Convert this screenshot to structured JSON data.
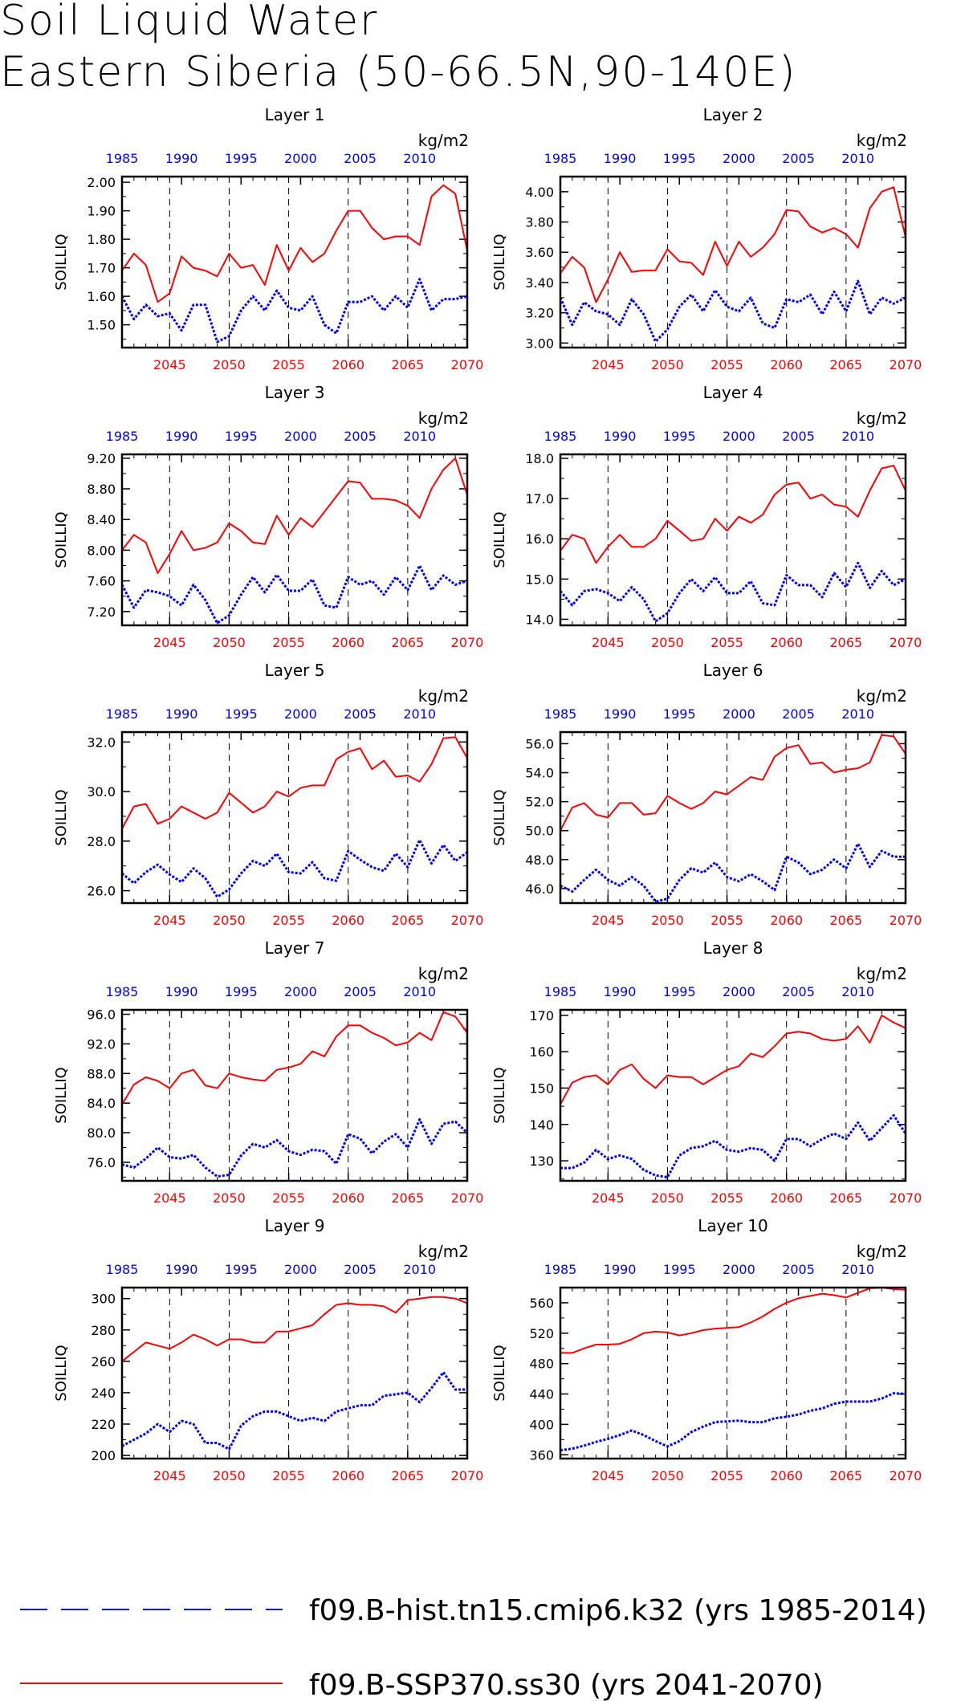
{
  "title": {
    "line1": "Soil Liquid Water",
    "line2": "Eastern Siberia (50-66.5N,90-140E)"
  },
  "colors": {
    "hist": "#0000ff",
    "ssp": "#ff0000",
    "axis": "#000000"
  },
  "common": {
    "ylabel": "SOILLIQ",
    "units": "kg/m2",
    "bottom_ticks": [
      "2045",
      "2050",
      "2055",
      "2060",
      "2065",
      "2070"
    ],
    "top_ticks": [
      "1985",
      "1990",
      "1995",
      "2000",
      "2005",
      "2010"
    ]
  },
  "legend": {
    "hist_label": "f09.B-hist.tn15.cmip6.k32 (yrs 1985-2014)",
    "ssp_label": "f09.B-SSP370.ss30 (yrs 2041-2070)"
  },
  "chart_data": [
    {
      "type": "line",
      "title": "Layer 1",
      "ylabel": "SOILLIQ",
      "units": "kg/m2",
      "ylim": [
        1.42,
        2.02
      ],
      "yticks": [
        1.5,
        1.6,
        1.7,
        1.8,
        1.9,
        2.0
      ],
      "ytick_labels": [
        "1.50",
        "1.60",
        "1.70",
        "1.80",
        "1.90",
        "2.00"
      ],
      "x_bottom": [
        2041,
        2070
      ],
      "x_top": [
        1985,
        2014
      ],
      "series": [
        {
          "name": "f09.B-SSP370.ss30 (yrs 2041-2070)",
          "color": "#ff0000",
          "values": [
            1.69,
            1.75,
            1.71,
            1.58,
            1.61,
            1.74,
            1.7,
            1.69,
            1.67,
            1.75,
            1.7,
            1.71,
            1.64,
            1.78,
            1.69,
            1.77,
            1.72,
            1.75,
            1.83,
            1.9,
            1.9,
            1.84,
            1.8,
            1.81,
            1.81,
            1.78,
            1.95,
            1.99,
            1.96,
            1.76
          ]
        },
        {
          "name": "f09.B-hist.tn15.cmip6.k32 (yrs 1985-2014)",
          "color": "#0000ff",
          "values": [
            1.6,
            1.52,
            1.57,
            1.53,
            1.54,
            1.48,
            1.57,
            1.57,
            1.44,
            1.46,
            1.55,
            1.6,
            1.55,
            1.62,
            1.56,
            1.55,
            1.6,
            1.5,
            1.47,
            1.58,
            1.58,
            1.6,
            1.55,
            1.6,
            1.56,
            1.66,
            1.55,
            1.59,
            1.59,
            1.6
          ]
        }
      ]
    },
    {
      "type": "line",
      "title": "Layer 2",
      "ylabel": "SOILLIQ",
      "units": "kg/m2",
      "ylim": [
        2.97,
        4.1
      ],
      "yticks": [
        3.0,
        3.2,
        3.4,
        3.6,
        3.8,
        4.0
      ],
      "ytick_labels": [
        "3.00",
        "3.20",
        "3.40",
        "3.60",
        "3.80",
        "4.00"
      ],
      "x_bottom": [
        2041,
        2070
      ],
      "x_top": [
        1985,
        2014
      ],
      "series": [
        {
          "name": "f09.B-SSP370.ss30 (yrs 2041-2070)",
          "color": "#ff0000",
          "values": [
            3.46,
            3.57,
            3.5,
            3.27,
            3.42,
            3.6,
            3.47,
            3.48,
            3.48,
            3.62,
            3.54,
            3.53,
            3.45,
            3.67,
            3.51,
            3.67,
            3.57,
            3.63,
            3.72,
            3.88,
            3.87,
            3.77,
            3.73,
            3.76,
            3.72,
            3.63,
            3.89,
            4.0,
            4.03,
            3.7
          ]
        },
        {
          "name": "f09.B-hist.tn15.cmip6.k32 (yrs 1985-2014)",
          "color": "#0000ff",
          "values": [
            3.3,
            3.12,
            3.27,
            3.21,
            3.19,
            3.12,
            3.29,
            3.19,
            3.01,
            3.09,
            3.24,
            3.32,
            3.21,
            3.35,
            3.24,
            3.21,
            3.3,
            3.13,
            3.1,
            3.29,
            3.27,
            3.32,
            3.19,
            3.34,
            3.21,
            3.41,
            3.19,
            3.3,
            3.26,
            3.3
          ]
        }
      ]
    },
    {
      "type": "line",
      "title": "Layer 3",
      "ylabel": "SOILLIQ",
      "units": "kg/m2",
      "ylim": [
        7.02,
        9.25
      ],
      "yticks": [
        7.2,
        7.6,
        8.0,
        8.4,
        8.8,
        9.2
      ],
      "ytick_labels": [
        "7.20",
        "7.60",
        "8.00",
        "8.40",
        "8.80",
        "9.20"
      ],
      "x_bottom": [
        2041,
        2070
      ],
      "x_top": [
        1985,
        2014
      ],
      "series": [
        {
          "name": "f09.B-SSP370.ss30 (yrs 2041-2070)",
          "color": "#ff0000",
          "values": [
            8.0,
            8.2,
            8.1,
            7.7,
            7.95,
            8.25,
            8.0,
            8.03,
            8.1,
            8.35,
            8.25,
            8.1,
            8.08,
            8.45,
            8.2,
            8.42,
            8.3,
            8.5,
            8.7,
            8.9,
            8.88,
            8.67,
            8.67,
            8.65,
            8.58,
            8.42,
            8.8,
            9.05,
            9.2,
            8.72
          ]
        },
        {
          "name": "f09.B-hist.tn15.cmip6.k32 (yrs 1985-2014)",
          "color": "#0000ff",
          "values": [
            7.55,
            7.25,
            7.48,
            7.45,
            7.4,
            7.28,
            7.55,
            7.35,
            7.05,
            7.15,
            7.42,
            7.65,
            7.45,
            7.68,
            7.47,
            7.47,
            7.62,
            7.28,
            7.25,
            7.65,
            7.55,
            7.6,
            7.42,
            7.65,
            7.48,
            7.8,
            7.48,
            7.67,
            7.55,
            7.6
          ]
        }
      ]
    },
    {
      "type": "line",
      "title": "Layer 4",
      "ylabel": "SOILLIQ",
      "units": "kg/m2",
      "ylim": [
        13.85,
        18.1
      ],
      "yticks": [
        14,
        15,
        16,
        17,
        18
      ],
      "ytick_labels": [
        "14.0",
        "15.0",
        "16.0",
        "17.0",
        "18.0"
      ],
      "x_bottom": [
        2041,
        2070
      ],
      "x_top": [
        1985,
        2014
      ],
      "series": [
        {
          "name": "f09.B-SSP370.ss30 (yrs 2041-2070)",
          "color": "#ff0000",
          "values": [
            15.7,
            16.1,
            16.0,
            15.4,
            15.8,
            16.1,
            15.8,
            15.8,
            16.0,
            16.45,
            16.2,
            15.95,
            16.0,
            16.5,
            16.2,
            16.55,
            16.4,
            16.6,
            17.1,
            17.35,
            17.4,
            17.0,
            17.1,
            16.85,
            16.8,
            16.55,
            17.2,
            17.75,
            17.82,
            17.2
          ]
        },
        {
          "name": "f09.B-hist.tn15.cmip6.k32 (yrs 1985-2014)",
          "color": "#0000ff",
          "values": [
            14.7,
            14.35,
            14.7,
            14.75,
            14.65,
            14.45,
            14.8,
            14.5,
            13.95,
            14.15,
            14.65,
            15.0,
            14.7,
            15.05,
            14.65,
            14.65,
            14.95,
            14.4,
            14.35,
            15.1,
            14.85,
            14.85,
            14.55,
            15.15,
            14.8,
            15.4,
            14.78,
            15.2,
            14.85,
            15.0
          ]
        }
      ]
    },
    {
      "type": "line",
      "title": "Layer 5",
      "ylabel": "SOILLIQ",
      "units": "kg/m2",
      "ylim": [
        25.5,
        32.4
      ],
      "yticks": [
        26,
        28,
        30,
        32
      ],
      "ytick_labels": [
        "26.0",
        "28.0",
        "30.0",
        "32.0"
      ],
      "x_bottom": [
        2041,
        2070
      ],
      "x_top": [
        1985,
        2014
      ],
      "series": [
        {
          "name": "f09.B-SSP370.ss30 (yrs 2041-2070)",
          "color": "#ff0000",
          "values": [
            28.5,
            29.4,
            29.5,
            28.7,
            28.9,
            29.4,
            29.15,
            28.9,
            29.15,
            29.95,
            29.55,
            29.15,
            29.4,
            30.0,
            29.8,
            30.15,
            30.25,
            30.25,
            31.3,
            31.6,
            31.75,
            30.9,
            31.25,
            30.6,
            30.65,
            30.4,
            31.1,
            32.15,
            32.2,
            31.35
          ]
        },
        {
          "name": "f09.B-hist.tn15.cmip6.k32 (yrs 1985-2014)",
          "color": "#0000ff",
          "values": [
            26.7,
            26.3,
            26.75,
            27.05,
            26.65,
            26.35,
            26.9,
            26.5,
            25.75,
            26.05,
            26.7,
            27.2,
            27.0,
            27.5,
            26.75,
            26.7,
            27.15,
            26.5,
            26.4,
            27.6,
            27.25,
            26.95,
            26.8,
            27.5,
            26.95,
            28.05,
            27.1,
            27.85,
            27.2,
            27.55
          ]
        }
      ]
    },
    {
      "type": "line",
      "title": "Layer 6",
      "ylabel": "SOILLIQ",
      "units": "kg/m2",
      "ylim": [
        45.0,
        56.8
      ],
      "yticks": [
        46,
        48,
        50,
        52,
        54,
        56
      ],
      "ytick_labels": [
        "46.0",
        "48.0",
        "50.0",
        "52.0",
        "54.0",
        "56.0"
      ],
      "x_bottom": [
        2041,
        2070
      ],
      "x_top": [
        1985,
        2014
      ],
      "series": [
        {
          "name": "f09.B-SSP370.ss30 (yrs 2041-2070)",
          "color": "#ff0000",
          "values": [
            50.0,
            51.6,
            51.9,
            51.1,
            50.9,
            51.9,
            51.9,
            51.1,
            51.2,
            52.4,
            51.9,
            51.5,
            51.9,
            52.7,
            52.5,
            53.1,
            53.7,
            53.5,
            55.1,
            55.7,
            55.9,
            54.6,
            54.7,
            54.0,
            54.2,
            54.3,
            54.7,
            56.6,
            56.5,
            55.3
          ]
        },
        {
          "name": "f09.B-hist.tn15.cmip6.k32 (yrs 1985-2014)",
          "color": "#0000ff",
          "values": [
            46.2,
            45.8,
            46.6,
            47.3,
            46.6,
            46.2,
            46.8,
            46.2,
            45.1,
            45.3,
            46.6,
            47.4,
            47.1,
            47.8,
            46.8,
            46.5,
            47.0,
            46.5,
            45.9,
            48.2,
            47.8,
            47.0,
            47.3,
            48.0,
            47.4,
            49.1,
            47.5,
            48.6,
            48.2,
            48.2
          ]
        }
      ]
    },
    {
      "type": "line",
      "title": "Layer 7",
      "ylabel": "SOILLIQ",
      "units": "kg/m2",
      "ylim": [
        73.5,
        96.6
      ],
      "yticks": [
        76,
        80,
        84,
        88,
        92,
        96
      ],
      "ytick_labels": [
        "76.0",
        "80.0",
        "84.0",
        "88.0",
        "92.0",
        "96.0"
      ],
      "x_bottom": [
        2041,
        2070
      ],
      "x_top": [
        1985,
        2014
      ],
      "series": [
        {
          "name": "f09.B-SSP370.ss30 (yrs 2041-2070)",
          "color": "#ff0000",
          "values": [
            83.8,
            86.5,
            87.5,
            87.0,
            86.0,
            88.0,
            88.5,
            86.4,
            86.0,
            88.0,
            87.5,
            87.2,
            87.0,
            88.5,
            88.8,
            89.3,
            91.0,
            90.3,
            93.0,
            94.5,
            94.5,
            93.5,
            92.8,
            91.8,
            92.2,
            93.5,
            92.5,
            96.3,
            95.7,
            93.5
          ]
        },
        {
          "name": "f09.B-hist.tn15.cmip6.k32 (yrs 1985-2014)",
          "color": "#0000ff",
          "values": [
            75.7,
            75.3,
            76.5,
            78.0,
            76.7,
            76.5,
            77.0,
            75.3,
            74.1,
            74.3,
            76.9,
            78.5,
            78.0,
            79.0,
            77.5,
            77.0,
            77.7,
            77.5,
            75.8,
            79.8,
            79.2,
            77.2,
            78.8,
            79.8,
            78.0,
            81.8,
            78.5,
            81.2,
            81.5,
            80.0
          ]
        }
      ]
    },
    {
      "type": "line",
      "title": "Layer 8",
      "ylabel": "SOILLIQ",
      "units": "kg/m2",
      "ylim": [
        124.5,
        171.5
      ],
      "yticks": [
        130,
        140,
        150,
        160,
        170
      ],
      "ytick_labels": [
        "130",
        "140",
        "150",
        "160",
        "170"
      ],
      "x_bottom": [
        2041,
        2070
      ],
      "x_top": [
        1985,
        2014
      ],
      "series": [
        {
          "name": "f09.B-SSP370.ss30 (yrs 2041-2070)",
          "color": "#ff0000",
          "values": [
            145.5,
            151.5,
            153.0,
            153.5,
            151.0,
            155.0,
            156.5,
            152.5,
            150.0,
            153.5,
            153.0,
            153.0,
            151.0,
            153.0,
            155.0,
            156.0,
            159.5,
            158.5,
            161.5,
            165.0,
            165.5,
            165.0,
            163.5,
            163.0,
            163.5,
            167.0,
            162.5,
            170.0,
            168.0,
            166.5
          ]
        },
        {
          "name": "f09.B-hist.tn15.cmip6.k32 (yrs 1985-2014)",
          "color": "#0000ff",
          "values": [
            128.0,
            128.0,
            129.5,
            133.0,
            130.5,
            131.5,
            130.5,
            127.5,
            126.0,
            125.5,
            131.5,
            133.5,
            134.0,
            135.5,
            133.0,
            132.5,
            133.5,
            133.0,
            130.0,
            136.0,
            136.0,
            134.0,
            136.0,
            137.5,
            136.0,
            140.5,
            135.5,
            139.0,
            142.5,
            137.5
          ]
        }
      ]
    },
    {
      "type": "line",
      "title": "Layer 9",
      "ylabel": "SOILLIQ",
      "units": "kg/m2",
      "ylim": [
        198,
        307
      ],
      "yticks": [
        200,
        220,
        240,
        260,
        280,
        300
      ],
      "ytick_labels": [
        "200",
        "220",
        "240",
        "260",
        "280",
        "300"
      ],
      "x_bottom": [
        2041,
        2070
      ],
      "x_top": [
        1985,
        2014
      ],
      "series": [
        {
          "name": "f09.B-SSP370.ss30 (yrs 2041-2070)",
          "color": "#ff0000",
          "values": [
            260,
            266,
            272,
            270,
            268,
            272,
            277,
            274,
            270,
            274,
            274,
            272,
            272,
            279,
            279,
            281,
            283,
            290,
            296,
            297,
            296,
            296,
            295,
            291,
            299,
            300,
            301,
            301,
            300,
            297
          ]
        },
        {
          "name": "f09.B-hist.tn15.cmip6.k32 (yrs 1985-2014)",
          "color": "#0000ff",
          "values": [
            206,
            210,
            214,
            220,
            215,
            222,
            220,
            208,
            208,
            204,
            219,
            225,
            228,
            228,
            225,
            222,
            224,
            222,
            228,
            230,
            232,
            232,
            238,
            239,
            240,
            234,
            243,
            253,
            242,
            242
          ]
        }
      ]
    },
    {
      "type": "line",
      "title": "Layer 10",
      "ylabel": "SOILLIQ",
      "units": "kg/m2",
      "ylim": [
        355,
        580
      ],
      "yticks": [
        360,
        400,
        440,
        480,
        520,
        560
      ],
      "ytick_labels": [
        "360",
        "400",
        "440",
        "480",
        "520",
        "560"
      ],
      "x_bottom": [
        2041,
        2070
      ],
      "x_top": [
        1985,
        2014
      ],
      "series": [
        {
          "name": "f09.B-SSP370.ss30 (yrs 2041-2070)",
          "color": "#ff0000",
          "values": [
            494,
            494,
            500,
            505,
            505,
            506,
            512,
            520,
            522,
            521,
            517,
            520,
            524,
            526,
            527,
            528,
            534,
            542,
            552,
            560,
            566,
            569,
            572,
            570,
            567,
            573,
            579,
            580,
            578,
            577
          ]
        },
        {
          "name": "f09.B-hist.tn15.cmip6.k32 (yrs 1985-2014)",
          "color": "#0000ff",
          "values": [
            366,
            368,
            372,
            377,
            381,
            386,
            392,
            386,
            378,
            371,
            378,
            390,
            397,
            403,
            404,
            405,
            403,
            403,
            408,
            410,
            413,
            418,
            421,
            427,
            430,
            430,
            430,
            434,
            441,
            440
          ]
        }
      ]
    }
  ]
}
